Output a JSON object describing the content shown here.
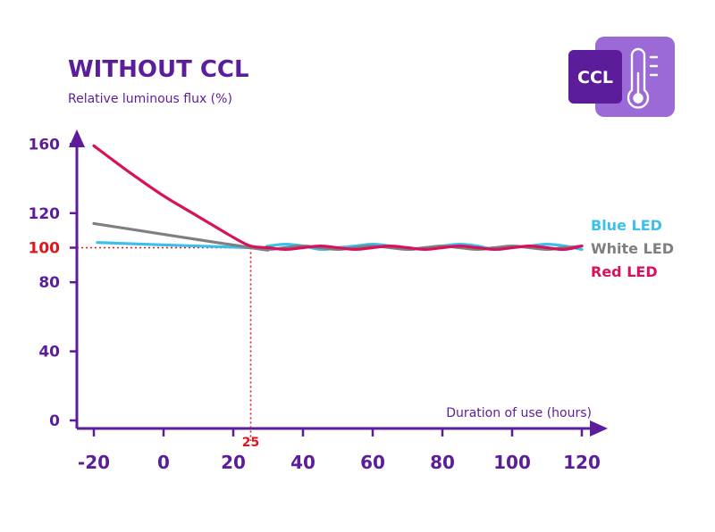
{
  "colors": {
    "axis": "#5b1d99",
    "title": "#5b1d99",
    "blue": "#3bbfec",
    "white": "#7f7f7f",
    "red": "#d8115c",
    "reference": "#e0161c",
    "badge_dark": "#5b1d99",
    "badge_light": "#9c6ad6"
  },
  "icons": {
    "badge": "ccl-badge-icon",
    "thermometer": "thermometer-icon"
  },
  "badge": {
    "text": "CCL"
  },
  "chart_data": {
    "type": "line",
    "title": "WITHOUT CCL",
    "ylabel": "Relative luminous flux (%)",
    "xlabel": "Duration of use (hours)",
    "xlim": [
      -20,
      120
    ],
    "ylim": [
      0,
      160
    ],
    "x_ticks": [
      -20,
      0,
      20,
      40,
      60,
      80,
      100,
      120
    ],
    "x_tick_labels": [
      "-20",
      "0",
      "20",
      "40",
      "60",
      "80",
      "100",
      "120"
    ],
    "y_ticks": [
      0,
      40,
      80,
      100,
      120,
      160
    ],
    "y_tick_labels": [
      "0",
      "40",
      "80",
      "100",
      "120",
      "160"
    ],
    "highlight_y_tick": 100,
    "reference": {
      "x": 25,
      "y": 100,
      "x_label": "25"
    },
    "legend_position": "right",
    "series": [
      {
        "name": "Blue LED",
        "color": "#3bbfec",
        "x": [
          -19,
          25,
          30,
          35,
          40,
          45,
          50,
          55,
          60,
          65,
          70,
          75,
          80,
          85,
          90,
          95,
          100,
          105,
          110,
          115,
          120
        ],
        "y": [
          103,
          100,
          101,
          102,
          101,
          99,
          100,
          101,
          102,
          101,
          99,
          100,
          101,
          102,
          101,
          99,
          100,
          101,
          102,
          101,
          99
        ]
      },
      {
        "name": "White LED",
        "color": "#7f7f7f",
        "x": [
          -20,
          25,
          30,
          35,
          40,
          45,
          50,
          55,
          60,
          65,
          70,
          75,
          80,
          85,
          90,
          95,
          100,
          105,
          110,
          115,
          120
        ],
        "y": [
          114,
          100,
          99,
          100,
          101,
          100,
          99,
          100,
          101,
          100,
          99,
          100,
          101,
          100,
          99,
          100,
          101,
          100,
          99,
          100,
          101
        ]
      },
      {
        "name": "Red LED",
        "color": "#d8115c",
        "x": [
          -20,
          -10,
          0,
          10,
          20,
          25,
          30,
          35,
          40,
          45,
          50,
          55,
          60,
          65,
          70,
          75,
          80,
          85,
          90,
          95,
          100,
          105,
          110,
          115,
          120
        ],
        "y": [
          159,
          144,
          130,
          118,
          106,
          101,
          100,
          99,
          100,
          101,
          100,
          99,
          100,
          101,
          100,
          99,
          100,
          101,
          100,
          99,
          100,
          101,
          100,
          99,
          101
        ]
      }
    ]
  }
}
